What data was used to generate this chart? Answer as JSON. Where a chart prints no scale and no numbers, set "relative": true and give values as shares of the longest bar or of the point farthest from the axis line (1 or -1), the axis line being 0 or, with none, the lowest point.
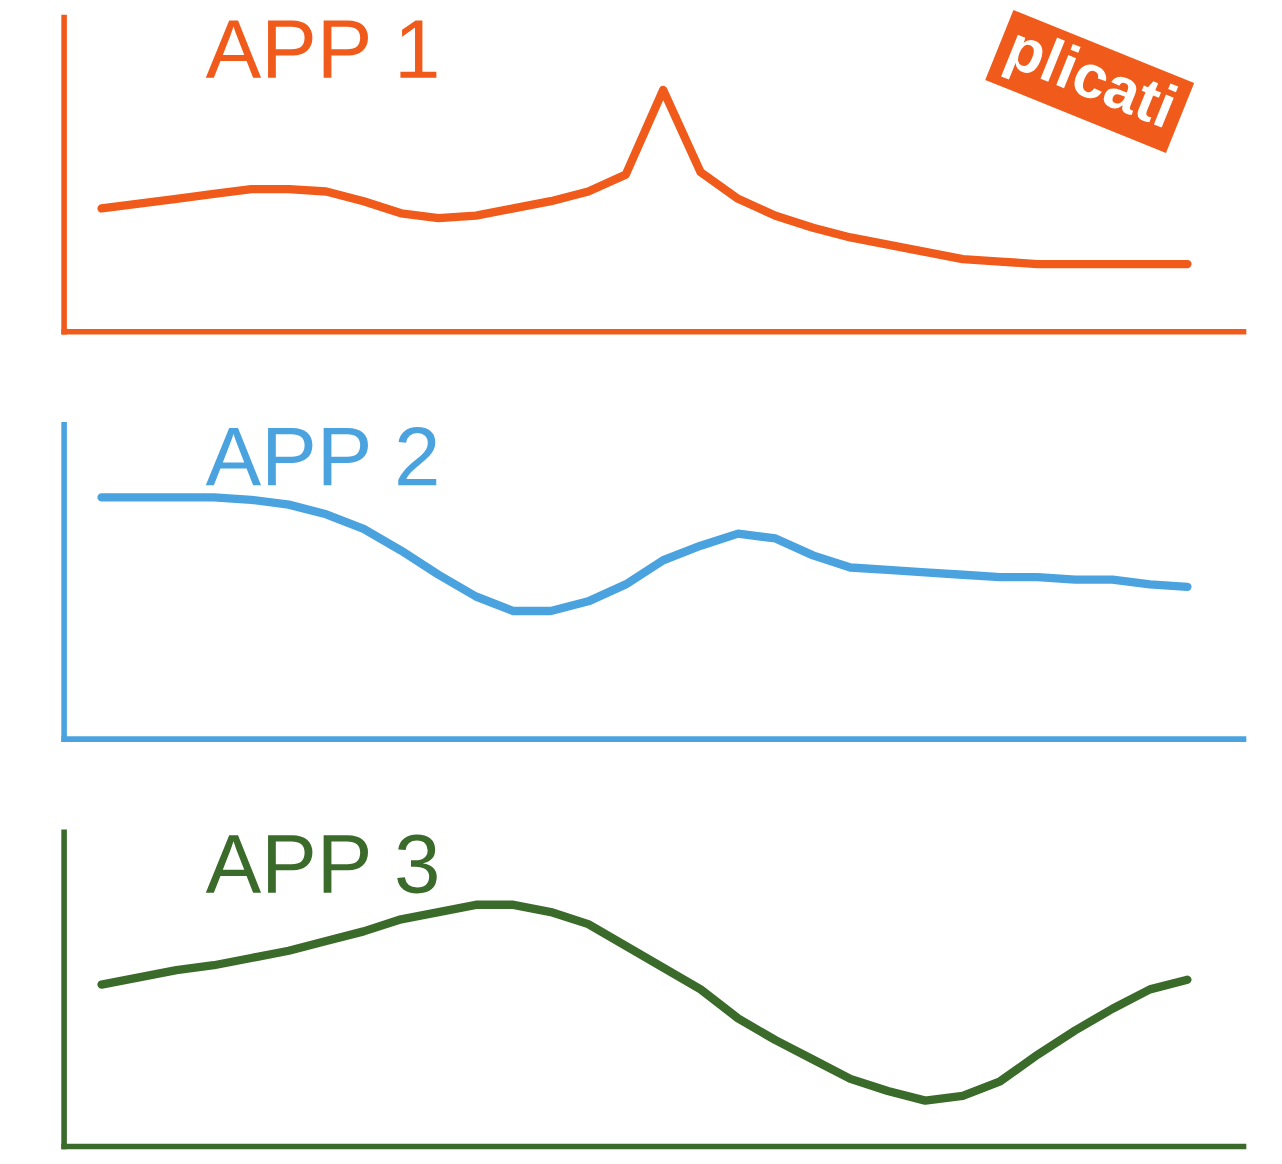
{
  "chart_data": [
    {
      "type": "line",
      "title": "APP 1",
      "relative": true,
      "grid": false,
      "legend": false,
      "annotations": [
        "plicati"
      ],
      "categories": [
        null,
        null,
        null,
        null,
        null,
        null,
        null,
        null,
        null,
        null,
        null,
        null,
        null,
        null,
        null,
        null,
        null,
        null,
        null,
        null,
        null,
        null,
        null,
        null,
        null,
        null,
        null,
        null,
        null,
        null
      ],
      "series": [
        {
          "color": "#f05a1a",
          "values": [
            0.51,
            0.53,
            0.55,
            0.57,
            0.59,
            0.59,
            0.58,
            0.54,
            0.49,
            0.47,
            0.48,
            0.51,
            0.54,
            0.58,
            0.65,
            1,
            0.66,
            0.55,
            0.48,
            0.43,
            0.39,
            0.36,
            0.33,
            0.3,
            0.29,
            0.28,
            0.28,
            0.28,
            0.28,
            0.28
          ]
        }
      ]
    },
    {
      "type": "line",
      "title": "APP 2",
      "relative": true,
      "grid": false,
      "legend": false,
      "categories": [
        null,
        null,
        null,
        null,
        null,
        null,
        null,
        null,
        null,
        null,
        null,
        null,
        null,
        null,
        null,
        null,
        null,
        null,
        null,
        null,
        null,
        null,
        null,
        null,
        null,
        null,
        null,
        null,
        null,
        null
      ],
      "series": [
        {
          "color": "#4aa3df",
          "values": [
            1,
            1,
            1,
            1,
            0.99,
            0.97,
            0.93,
            0.87,
            0.78,
            0.68,
            0.59,
            0.53,
            0.53,
            0.57,
            0.64,
            0.74,
            0.8,
            0.85,
            0.83,
            0.76,
            0.71,
            0.7,
            0.69,
            0.68,
            0.67,
            0.67,
            0.66,
            0.66,
            0.64,
            0.63
          ]
        }
      ]
    },
    {
      "type": "line",
      "title": "APP 3",
      "relative": true,
      "grid": false,
      "legend": false,
      "categories": [
        null,
        null,
        null,
        null,
        null,
        null,
        null,
        null,
        null,
        null,
        null,
        null,
        null,
        null,
        null,
        null,
        null,
        null,
        null,
        null,
        null,
        null,
        null,
        null,
        null,
        null,
        null,
        null,
        null,
        null
      ],
      "series": [
        {
          "color": "#3b6b2a",
          "values": [
            0.67,
            0.7,
            0.73,
            0.75,
            0.78,
            0.81,
            0.85,
            0.89,
            0.94,
            0.97,
            1,
            1,
            0.97,
            0.92,
            0.83,
            0.74,
            0.65,
            0.53,
            0.44,
            0.36,
            0.28,
            0.23,
            0.19,
            0.21,
            0.27,
            0.38,
            0.48,
            0.57,
            0.65,
            0.69
          ]
        }
      ]
    }
  ]
}
